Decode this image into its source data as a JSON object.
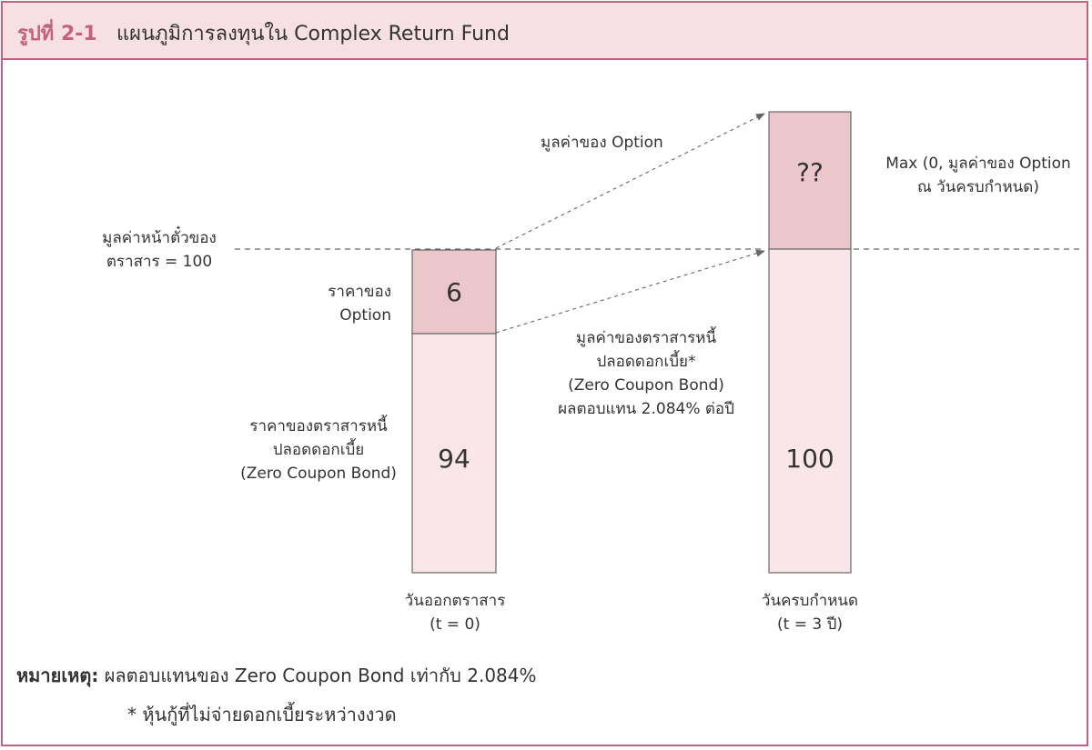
{
  "header": {
    "figure_label": "รูปที่ 2-1",
    "title": "แผนภูมิการลงทุนใน Complex Return Fund"
  },
  "diagram": {
    "par_value_label": [
      "มูลค่าหน้าตั๋วของ",
      "ตราสาร = 100"
    ],
    "option_price_label": [
      "ราคาของ",
      "Option"
    ],
    "zcb_price_label": [
      "ราคาของตราสารหนี้",
      "ปลอดดอกเบี้ย",
      "(Zero Coupon Bond)"
    ],
    "option_value_arrow_label": "มูลค่าของ Option",
    "zcb_value_arrow_label": [
      "มูลค่าของตราสารหนี้",
      "ปลอดดอกเบี้ย*",
      "(Zero Coupon Bond)",
      "ผลตอบแทน 2.084% ต่อปี"
    ],
    "maturity_payoff_label": [
      "Max (0, มูลค่าของ Option",
      "ณ วันครบกำหนด)"
    ],
    "issue_bar": {
      "option_value": "6",
      "bond_value": "94",
      "caption": [
        "วันออกตราสาร",
        "(t = 0)"
      ]
    },
    "maturity_bar": {
      "option_value": "??",
      "bond_value": "100",
      "caption": [
        "วันครบกำหนด",
        "(t = 3 ปี)"
      ]
    },
    "colors": {
      "option_fill": "#ebc7cc",
      "bond_fill": "#fae6e8",
      "border": "#c4617e",
      "bar_stroke": "#666666",
      "dashed": "#666666"
    }
  },
  "note": {
    "label": "หมายเหตุ:",
    "text": "ผลตอบแทนของ Zero Coupon Bond เท่ากับ 2.084%",
    "footnote": "* หุ้นกู้ที่ไม่จ่ายดอกเบี้ยระหว่างงวด"
  }
}
